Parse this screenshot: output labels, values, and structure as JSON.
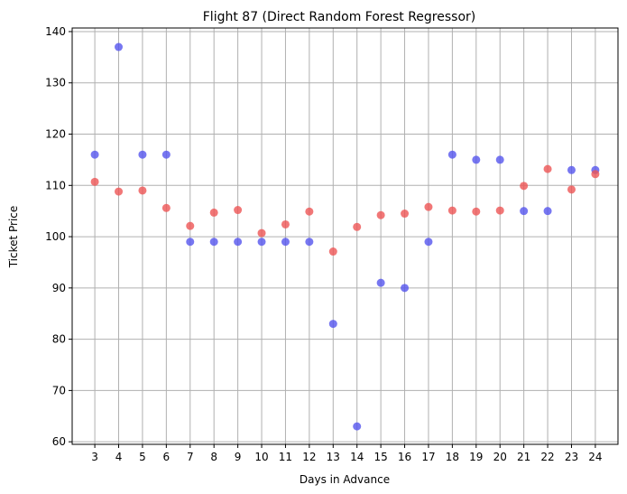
{
  "chart_data": {
    "type": "scatter",
    "title": "Flight 87 (Direct Random Forest Regressor)",
    "xlabel": "Days in Advance",
    "ylabel": "Ticket Price",
    "x": [
      3,
      4,
      5,
      6,
      7,
      8,
      9,
      10,
      11,
      12,
      13,
      14,
      15,
      16,
      17,
      18,
      19,
      20,
      21,
      22,
      23,
      24
    ],
    "xticks": [
      "3",
      "4",
      "5",
      "6",
      "7",
      "8",
      "9",
      "10",
      "11",
      "12",
      "13",
      "14",
      "15",
      "16",
      "17",
      "18",
      "19",
      "20",
      "21",
      "22",
      "23",
      "24"
    ],
    "yticks": [
      60,
      70,
      80,
      90,
      100,
      110,
      120,
      130,
      140
    ],
    "ylim": [
      59.5,
      140.7
    ],
    "grid": true,
    "legend": "none",
    "series": [
      {
        "color": "#5555ee",
        "values": [
          116,
          137,
          116,
          116,
          99,
          99,
          99,
          99,
          99,
          99,
          83,
          63,
          91,
          90,
          99,
          116,
          115,
          115,
          105,
          105,
          113,
          113
        ]
      },
      {
        "color": "#ee5555",
        "values": [
          110.7,
          108.8,
          109.0,
          105.6,
          102.1,
          104.7,
          105.2,
          100.7,
          102.4,
          104.9,
          97.1,
          101.9,
          104.2,
          104.5,
          105.8,
          105.1,
          104.9,
          105.1,
          109.9,
          113.2,
          109.2,
          112.2
        ]
      }
    ]
  }
}
